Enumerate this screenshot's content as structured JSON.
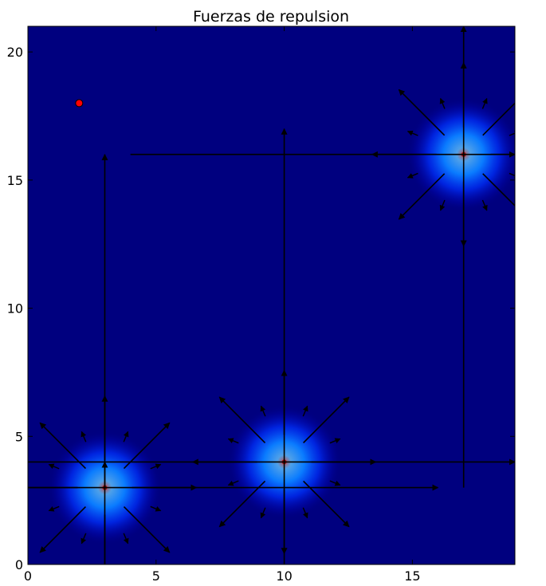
{
  "chart_data": {
    "type": "quiver",
    "title": "Fuerzas de repulsion",
    "xlabel": "",
    "ylabel": "",
    "xlim": [
      0,
      19
    ],
    "ylim": [
      0,
      21
    ],
    "xticks": [
      {
        "value": 0,
        "label": "0"
      },
      {
        "value": 5,
        "label": "5"
      },
      {
        "value": 10,
        "label": "10"
      },
      {
        "value": 15,
        "label": "15"
      }
    ],
    "yticks": [
      {
        "value": 0,
        "label": "0"
      },
      {
        "value": 5,
        "label": "5"
      },
      {
        "value": 10,
        "label": "10"
      },
      {
        "value": 15,
        "label": "15"
      },
      {
        "value": 20,
        "label": "20"
      }
    ],
    "grid": false,
    "background_color": "#00007f",
    "obstacles": [
      {
        "x": 3,
        "y": 3
      },
      {
        "x": 10,
        "y": 4
      },
      {
        "x": 17,
        "y": 16
      }
    ],
    "goal_point": {
      "x": 2,
      "y": 18,
      "color": "#ff0000"
    }
  }
}
